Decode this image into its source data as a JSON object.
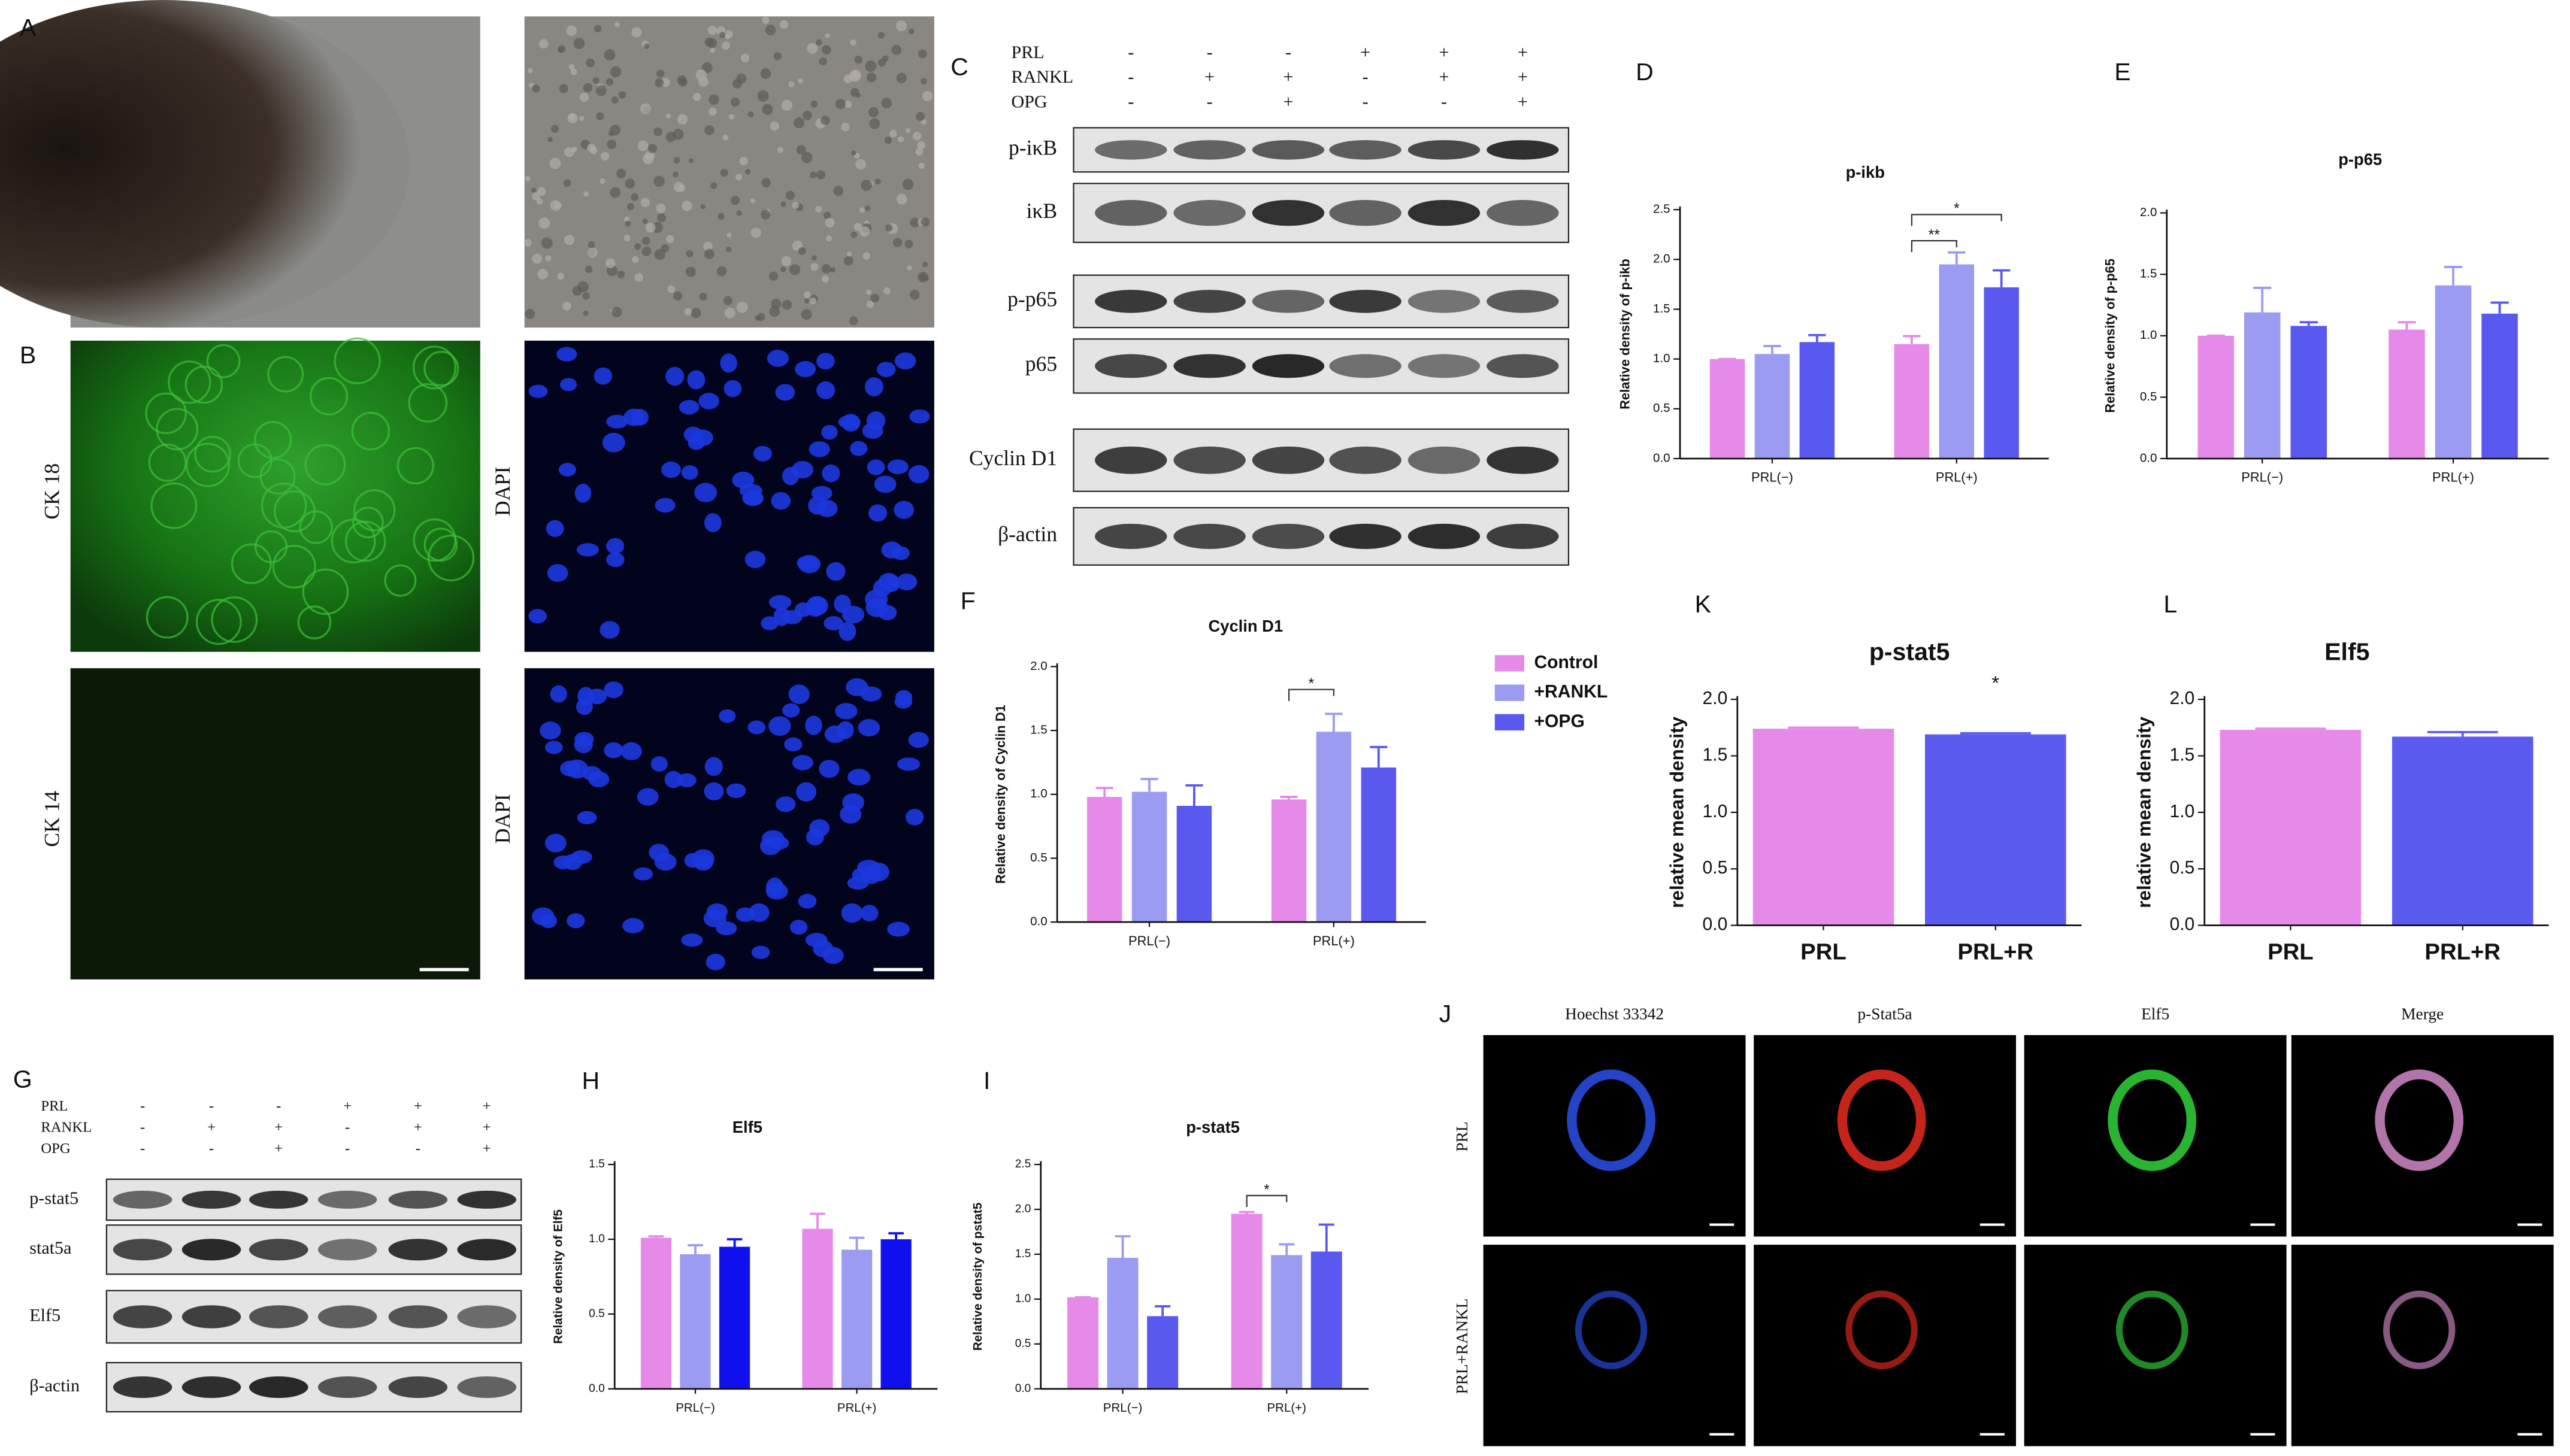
{
  "panel_labels": [
    "A",
    "B",
    "C",
    "D",
    "E",
    "F",
    "G",
    "H",
    "I",
    "J",
    "K",
    "L"
  ],
  "panel_b": {
    "labels": [
      "CK 18",
      "DAPI",
      "CK 14",
      "DAPI"
    ]
  },
  "panel_c": {
    "treatments": [
      {
        "name": "PRL",
        "signs": [
          "-",
          "-",
          "-",
          "+",
          "+",
          "+"
        ]
      },
      {
        "name": "RANKL",
        "signs": [
          "-",
          "+",
          "+",
          "-",
          "+",
          "+"
        ]
      },
      {
        "name": "OPG",
        "signs": [
          "-",
          "-",
          "+",
          "-",
          "-",
          "+"
        ]
      }
    ],
    "bands": [
      "p-iκB",
      "iκB",
      "p-p65",
      "p65",
      "Cyclin D1",
      "β-actin"
    ]
  },
  "panel_g": {
    "treatments": [
      {
        "name": "PRL",
        "signs": [
          "-",
          "-",
          "-",
          "+",
          "+",
          "+"
        ]
      },
      {
        "name": "RANKL",
        "signs": [
          "-",
          "+",
          "+",
          "-",
          "+",
          "+"
        ]
      },
      {
        "name": "OPG",
        "signs": [
          "-",
          "-",
          "+",
          "-",
          "-",
          "+"
        ]
      }
    ],
    "bands": [
      "p-stat5",
      "stat5a",
      "Elf5",
      "β-actin"
    ]
  },
  "panel_j": {
    "columns": [
      "Hoechst  33342",
      "p-Stat5a",
      "Elf5",
      "Merge"
    ],
    "rows": [
      "PRL",
      "PRL+RANKL"
    ]
  },
  "chart_data": [
    {
      "type": "bar",
      "title": "p-ikb",
      "y_label": "Relative  density of p-ikb",
      "categories": [
        "PRL(−)",
        "PRL(+)"
      ],
      "series": [
        {
          "color": "#e68ae9",
          "values": [
            1.0,
            1.15
          ],
          "errors": [
            0,
            0.08
          ]
        },
        {
          "color": "#9b9bf2",
          "values": [
            1.05,
            1.95
          ],
          "errors": [
            0.08,
            0.12
          ]
        },
        {
          "color": "#5959ef",
          "values": [
            1.17,
            1.72
          ],
          "errors": [
            0.07,
            0.17
          ]
        }
      ],
      "ylim": [
        0,
        2.5
      ],
      "yticks": [
        {
          "value": 0,
          "label": "0.0"
        },
        0.5,
        {
          "value": 1,
          "label": "1.0"
        },
        1.5,
        {
          "value": 2,
          "label": "2.0"
        },
        2.5
      ],
      "annotations": [
        "**",
        "*"
      ]
    },
    {
      "type": "bar",
      "title": "p-p65",
      "y_label": "Relative  density of p-p65",
      "categories": [
        "PRL(−)",
        "PRL(+)"
      ],
      "series": [
        {
          "color": "#e68ae9",
          "values": [
            1.0,
            1.05
          ],
          "errors": [
            0,
            0.06
          ]
        },
        {
          "color": "#9b9bf2",
          "values": [
            1.19,
            1.41
          ],
          "errors": [
            0.2,
            0.15
          ]
        },
        {
          "color": "#5959ef",
          "values": [
            1.08,
            1.18
          ],
          "errors": [
            0.03,
            0.09
          ]
        }
      ],
      "ylim": [
        0,
        2
      ],
      "yticks": [
        {
          "value": 0,
          "label": "0.0"
        },
        0.5,
        {
          "value": 1,
          "label": "1.0"
        },
        1.5,
        {
          "value": 2,
          "label": "2.0"
        }
      ],
      "annotations": []
    },
    {
      "type": "bar",
      "title": "Cyclin D1",
      "y_label": "Relative  density of Cyclin D1",
      "categories": [
        "PRL(−)",
        "PRL(+)"
      ],
      "series": [
        {
          "name": "Control",
          "color": "#e68ae9",
          "values": [
            0.98,
            0.96
          ],
          "errors": [
            0.07,
            0.02
          ]
        },
        {
          "name": "+RANKL",
          "color": "#9b9bf2",
          "values": [
            1.02,
            1.49
          ],
          "errors": [
            0.1,
            0.14
          ]
        },
        {
          "name": "+OPG",
          "color": "#5959ef",
          "values": [
            0.91,
            1.21
          ],
          "errors": [
            0.16,
            0.16
          ]
        }
      ],
      "ylim": [
        0,
        2
      ],
      "yticks": [
        {
          "value": 0,
          "label": "0.0"
        },
        0.5,
        {
          "value": 1,
          "label": "1.0"
        },
        1.5,
        {
          "value": 2,
          "label": "2.0"
        }
      ],
      "legend": "right",
      "annotations": [
        "*"
      ]
    },
    {
      "type": "bar",
      "title": "Elf5",
      "y_label": "Relative  density of Elf5",
      "categories": [
        "PRL(−)",
        "PRL(+)"
      ],
      "series": [
        {
          "color": "#e68ae9",
          "values": [
            1.01,
            1.07
          ],
          "errors": [
            0.01,
            0.1
          ]
        },
        {
          "color": "#9b9bf2",
          "values": [
            0.9,
            0.93
          ],
          "errors": [
            0.06,
            0.08
          ]
        },
        {
          "color": "#1010ee",
          "values": [
            0.95,
            1.0
          ],
          "errors": [
            0.05,
            0.04
          ]
        }
      ],
      "ylim": [
        0,
        1.5
      ],
      "yticks": [
        {
          "value": 0,
          "label": "0.0"
        },
        0.5,
        {
          "value": 1,
          "label": "1.0"
        },
        1.5
      ],
      "annotations": []
    },
    {
      "type": "bar",
      "title": "p-stat5",
      "y_label": "Relative  density of pstat5",
      "categories": [
        "PRL(−)",
        "PRL(+)"
      ],
      "series": [
        {
          "color": "#e68ae9",
          "values": [
            1.02,
            1.95
          ],
          "errors": [
            0,
            0.02
          ]
        },
        {
          "color": "#9b9bf2",
          "values": [
            1.46,
            1.49
          ],
          "errors": [
            0.24,
            0.12
          ]
        },
        {
          "color": "#5959ef",
          "values": [
            0.81,
            1.53
          ],
          "errors": [
            0.11,
            0.3
          ]
        }
      ],
      "ylim": [
        0,
        2.5
      ],
      "yticks": [
        {
          "value": 0,
          "label": "0.0"
        },
        0.5,
        {
          "value": 1,
          "label": "1.0"
        },
        1.5,
        {
          "value": 2,
          "label": "2.0"
        },
        2.5
      ],
      "annotations": [
        "*"
      ]
    },
    {
      "type": "bar",
      "title": "p-stat5",
      "y_label": "relative mean density",
      "categories": [
        "PRL",
        "PRL+R"
      ],
      "series": [
        {
          "values": [
            1.74,
            1.69
          ],
          "errors": [
            0.01,
            0.01
          ]
        }
      ],
      "bar_colors": [
        "#e68ae9",
        "#5b5bf0"
      ],
      "ylim": [
        0,
        2
      ],
      "yticks": [
        {
          "value": 0,
          "label": "0.0"
        },
        0.5,
        {
          "value": 1,
          "label": "1.0"
        },
        1.5,
        {
          "value": 2,
          "label": "2.0"
        }
      ],
      "annotations": [
        "*"
      ]
    },
    {
      "type": "bar",
      "title": "Elf5",
      "y_label": "relative mean density",
      "categories": [
        "PRL",
        "PRL+R"
      ],
      "series": [
        {
          "values": [
            1.73,
            1.67
          ],
          "errors": [
            0.01,
            0.04
          ]
        }
      ],
      "bar_colors": [
        "#e68ae9",
        "#5b5bf0"
      ],
      "ylim": [
        0,
        2
      ],
      "yticks": [
        {
          "value": 0,
          "label": "0.0"
        },
        0.5,
        {
          "value": 1,
          "label": "1.0"
        },
        1.5,
        {
          "value": 2,
          "label": "2.0"
        }
      ],
      "annotations": []
    }
  ]
}
